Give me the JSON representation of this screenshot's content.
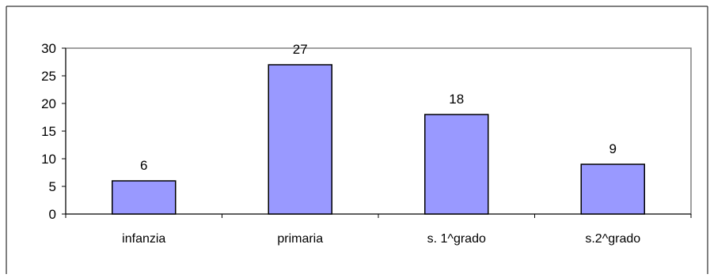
{
  "chart_data": {
    "type": "bar",
    "title": "",
    "xlabel": "",
    "ylabel": "",
    "categories": [
      "infanzia",
      "primaria",
      "s. 1^grado",
      "s.2^grado"
    ],
    "values": [
      6,
      27,
      18,
      9
    ],
    "data_labels": [
      "6",
      "27",
      "18",
      "9"
    ],
    "ylim": [
      0,
      30
    ],
    "yticks": [
      0,
      5,
      10,
      15,
      20,
      25,
      30
    ],
    "ytick_labels": [
      "0",
      "5",
      "10",
      "15",
      "20",
      "25",
      "30"
    ],
    "grid": false,
    "legend": "none",
    "bar_color": "#9999FF",
    "bar_border_color": "#000000",
    "plot_border_color": "#808080"
  }
}
